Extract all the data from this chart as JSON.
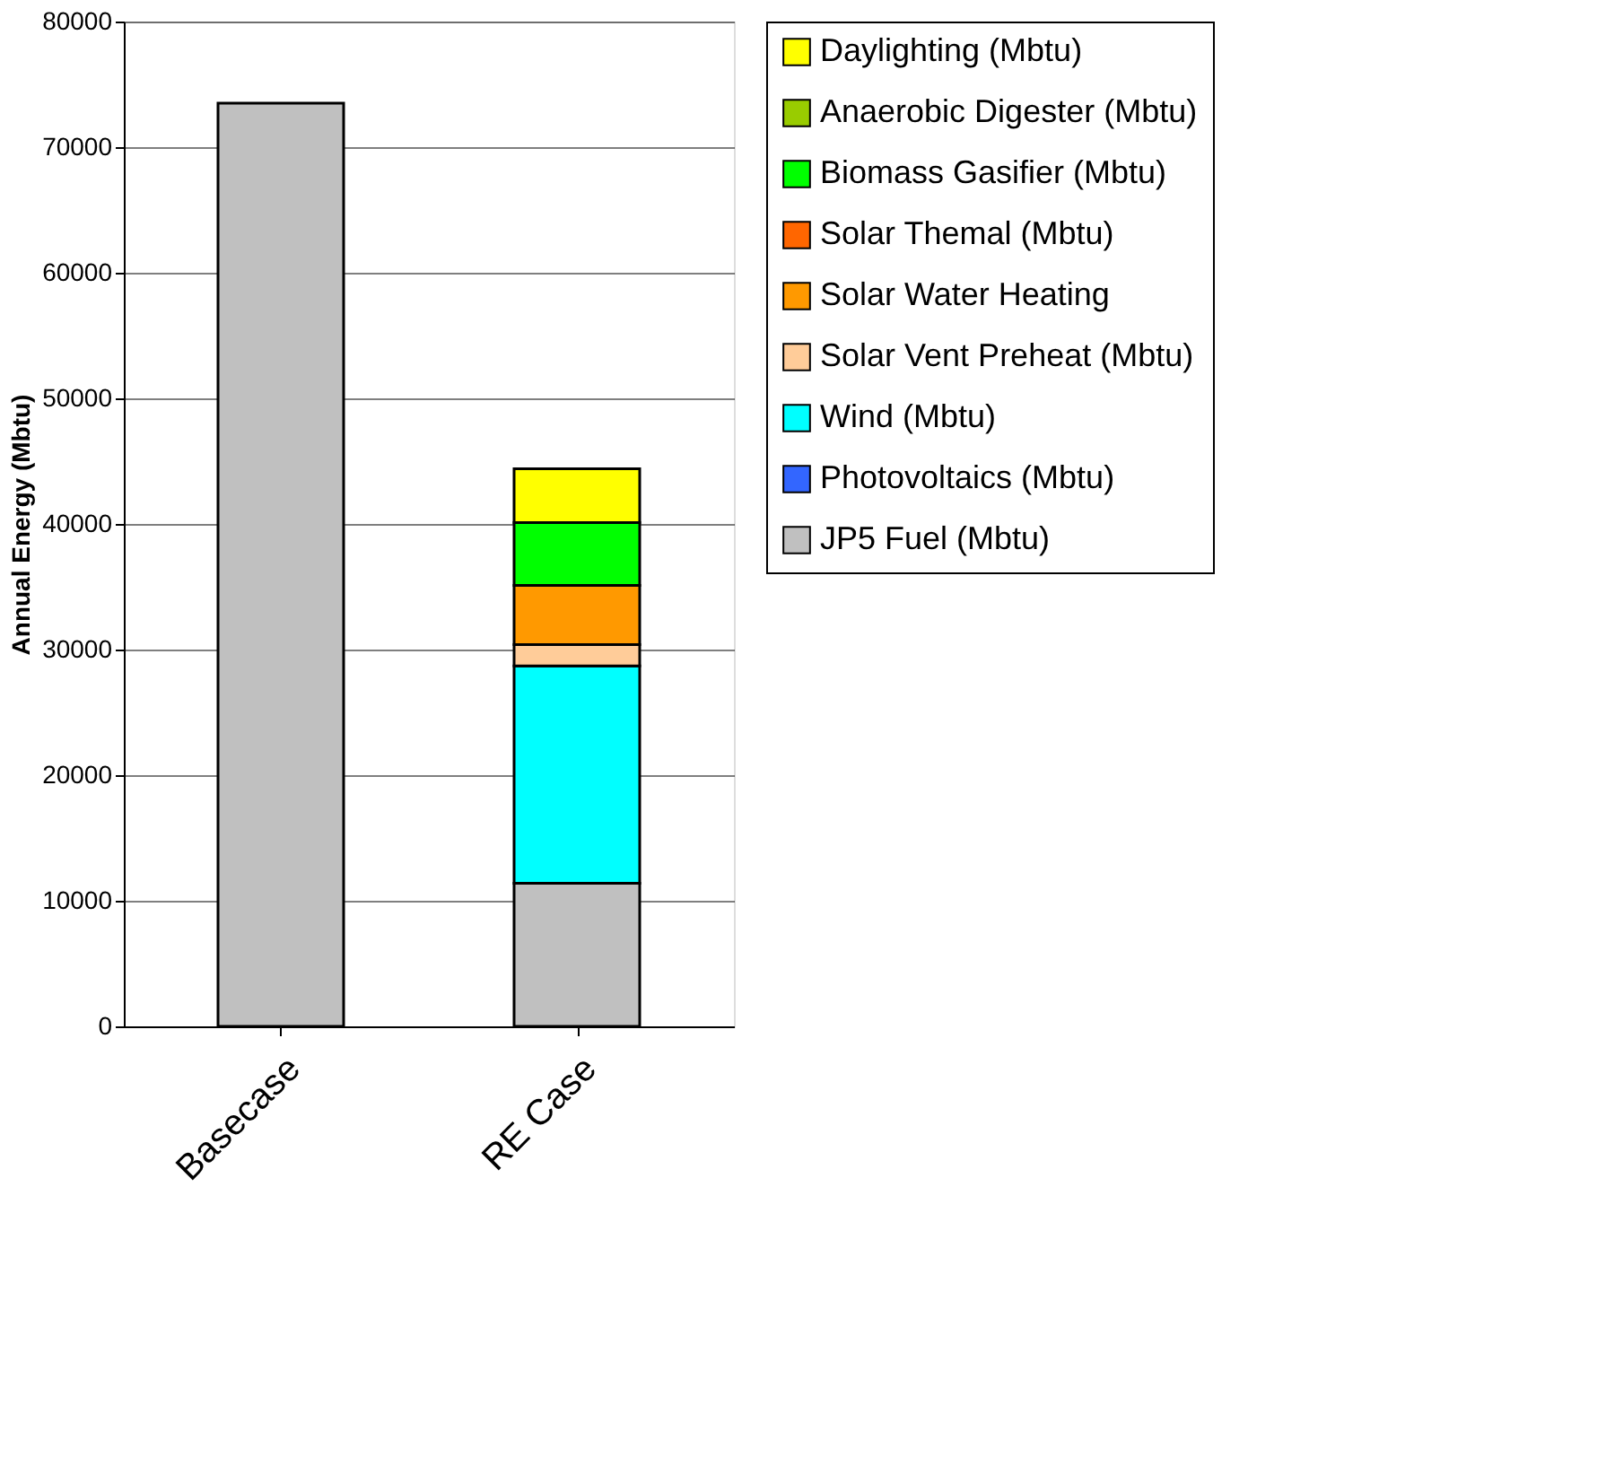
{
  "chart_data": {
    "type": "bar",
    "stacked": true,
    "ylabel": "Annual Energy (Mbtu)",
    "categories": [
      "Basecase",
      "RE Case"
    ],
    "series": [
      {
        "name": "JP5 Fuel (Mbtu)",
        "color": "#c0c0c0",
        "values": [
          73500,
          11400
        ]
      },
      {
        "name": "Photovoltaics (Mbtu)",
        "color": "#3366ff",
        "values": [
          0,
          0
        ]
      },
      {
        "name": "Wind (Mbtu)",
        "color": "#00ffff",
        "values": [
          0,
          17300
        ]
      },
      {
        "name": "Solar Vent Preheat (Mbtu)",
        "color": "#ffcc99",
        "values": [
          0,
          1700
        ]
      },
      {
        "name": "Solar Water Heating",
        "color": "#ff9900",
        "values": [
          0,
          4700
        ]
      },
      {
        "name": "Solar Themal (Mbtu)",
        "color": "#ff6600",
        "values": [
          0,
          0
        ]
      },
      {
        "name": "Biomass Gasifier (Mbtu)",
        "color": "#00ff00",
        "values": [
          0,
          5000
        ]
      },
      {
        "name": "Anaerobic Digester (Mbtu)",
        "color": "#99cc00",
        "values": [
          0,
          0
        ]
      },
      {
        "name": "Daylighting (Mbtu)",
        "color": "#ffff00",
        "values": [
          0,
          4300
        ]
      }
    ],
    "ylim": [
      0,
      80000
    ],
    "yticks": [
      0,
      10000,
      20000,
      30000,
      40000,
      50000,
      60000,
      70000,
      80000
    ],
    "grid": "y",
    "legend": "right"
  }
}
